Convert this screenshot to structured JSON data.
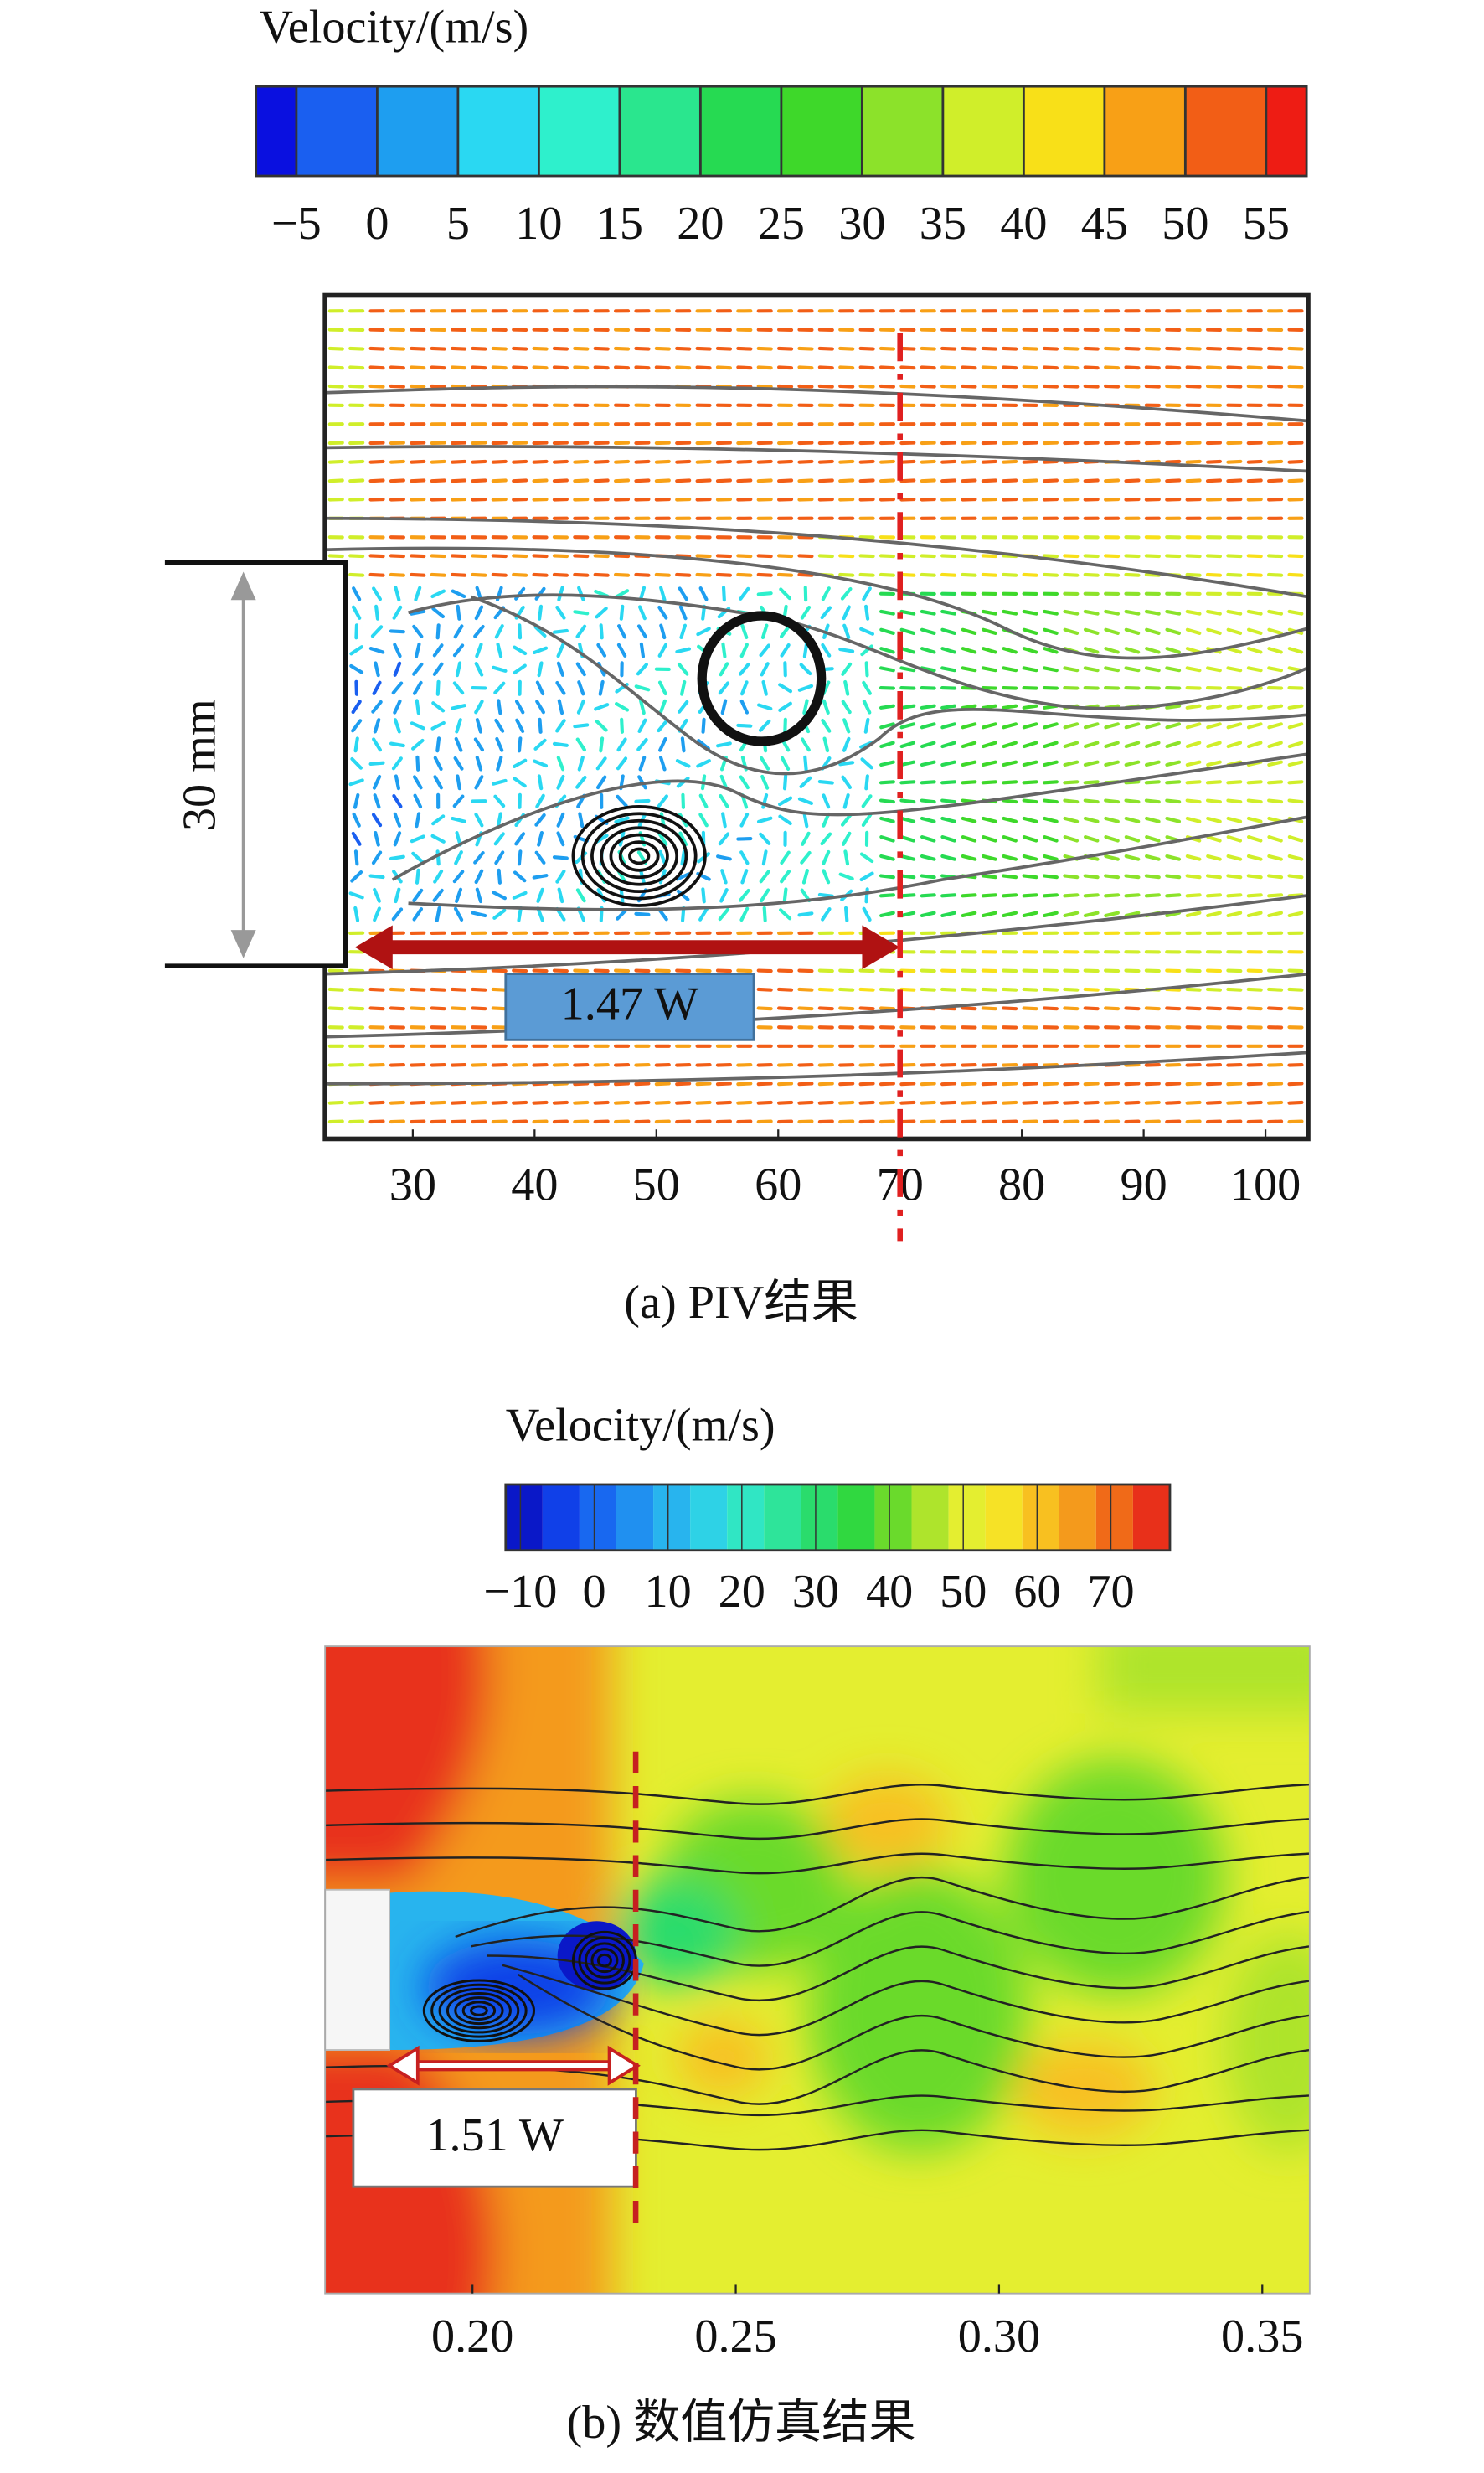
{
  "chart_data": [
    {
      "type": "vector-field",
      "colorbar": {
        "title": "Velocity/(m/s)",
        "ticks": [
          {
            "value": -5,
            "label": "−5"
          },
          0,
          5,
          10,
          15,
          20,
          25,
          30,
          35,
          40,
          45,
          50,
          55
        ],
        "lim": [
          -7.5,
          57.5
        ],
        "colors": [
          "#0a10e0",
          "#1a5ff0",
          "#1e9ef0",
          "#2ad8f2",
          "#2ef0cc",
          "#2ae68e",
          "#26da52",
          "#3ed82a",
          "#8ce22a",
          "#d0ee2a",
          "#f8e018",
          "#f8a016",
          "#f25e16",
          "#ee1c14"
        ]
      },
      "xlim": [
        22.8,
        103.5
      ],
      "xticks": [
        30,
        40,
        50,
        60,
        70,
        80,
        90,
        100
      ],
      "reference_x": 70,
      "annotations": {
        "height": "30 mm",
        "length": "1.47 W"
      },
      "caption": "(a) PIV结果"
    },
    {
      "type": "contour",
      "colorbar": {
        "title": "Velocity/(m/s)",
        "ticks": [
          {
            "value": -10,
            "label": "−10"
          },
          0,
          10,
          20,
          30,
          40,
          50,
          60,
          70
        ],
        "lim": [
          -12,
          78
        ],
        "colors": [
          "#0a18c8",
          "#1040e8",
          "#1868f0",
          "#2090f0",
          "#28b4ee",
          "#2ed2e6",
          "#30e6c4",
          "#2ee49a",
          "#2adc6c",
          "#30d840",
          "#6ada2c",
          "#aee42c",
          "#e4ee30",
          "#f6e226",
          "#f8c020",
          "#f49a1c",
          "#f06a18",
          "#e8301a"
        ]
      },
      "xlim": [
        0.172,
        0.359
      ],
      "xticks": [
        {
          "value": 0.2,
          "label": "0.20"
        },
        {
          "value": 0.25,
          "label": "0.25"
        },
        {
          "value": 0.3,
          "label": "0.30"
        },
        {
          "value": 0.35,
          "label": "0.35"
        }
      ],
      "reference_x": 0.231,
      "annotations": {
        "length": "1.51 W"
      },
      "caption": "(b) 数值仿真结果"
    }
  ]
}
